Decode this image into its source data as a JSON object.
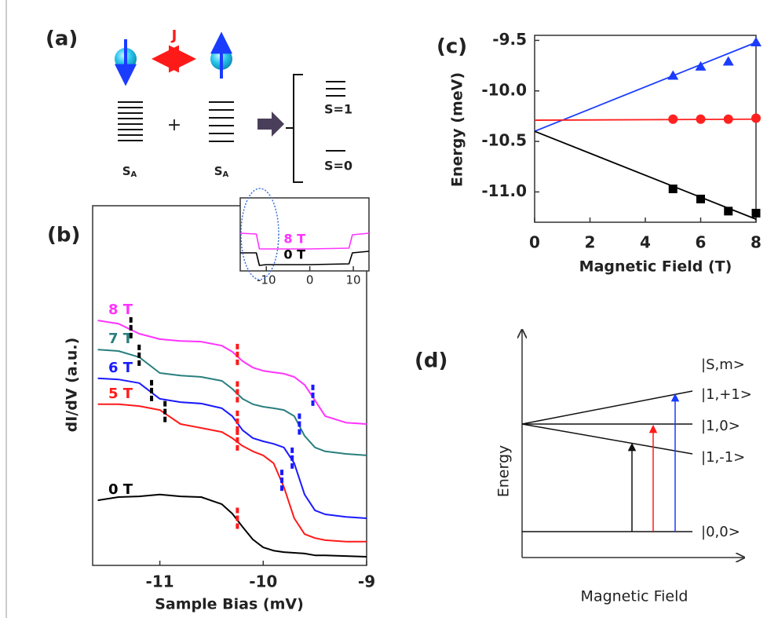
{
  "panel_a": {
    "label": "(a)",
    "coupling": "J",
    "plus": "+",
    "site_labels": [
      {
        "base": "S",
        "sub": "A"
      },
      {
        "base": "S",
        "sub": "A"
      }
    ],
    "levels": [
      "S=1",
      "S=0"
    ]
  },
  "chart_data": [
    {
      "type": "line",
      "panel_label": "(b)",
      "xlabel": "Sample Bias (mV)",
      "ylabel": "dI/dV (a.u.)",
      "x": [
        -11.6,
        -11.4,
        -11.2,
        -11.0,
        -10.8,
        -10.6,
        -10.4,
        -10.3,
        -10.2,
        -10.1,
        -10.0,
        -9.9,
        -9.8,
        -9.7,
        -9.6,
        -9.5,
        -9.4,
        -9.2,
        -9.0
      ],
      "xlim": [
        -11.65,
        -9
      ],
      "xticks": [
        -11,
        -10,
        -9
      ],
      "ylim": [
        0,
        100
      ],
      "series": [
        {
          "name": "0 T",
          "color": "#000000",
          "values": [
            18.1,
            19.0,
            19.2,
            19.7,
            19.2,
            19.0,
            17.0,
            14.4,
            10.7,
            7.2,
            5.0,
            4.1,
            3.7,
            3.5,
            3.3,
            2.8,
            2.8,
            2.6,
            2.4
          ],
          "steps": [
            {
              "x": -10.25,
              "color": "#ff1a1a"
            }
          ]
        },
        {
          "name": "5 T",
          "color": "#ff1a1a",
          "values": [
            44.8,
            44.8,
            44.3,
            43.2,
            39.3,
            38.2,
            37.1,
            35.4,
            33.2,
            31.7,
            30.6,
            28.4,
            21.8,
            13.1,
            8.7,
            7.6,
            7.0,
            6.6,
            6.6
          ],
          "steps": [
            {
              "x": -10.95,
              "color": "#000000"
            },
            {
              "x": -10.25,
              "color": "#ff1a1a"
            },
            {
              "x": -9.82,
              "color": "#1a1aff"
            }
          ]
        },
        {
          "name": "6 T",
          "color": "#1a1aff",
          "values": [
            52.0,
            51.7,
            50.7,
            46.3,
            45.4,
            45.0,
            43.7,
            41.5,
            37.6,
            35.4,
            34.5,
            33.8,
            32.8,
            28.4,
            19.7,
            15.3,
            14.2,
            13.5,
            13.1
          ],
          "steps": [
            {
              "x": -11.08,
              "color": "#000000"
            },
            {
              "x": -10.25,
              "color": "#ff1a1a"
            },
            {
              "x": -9.72,
              "color": "#1a1aff"
            }
          ]
        },
        {
          "name": "7 T",
          "color": "#2a7f7f",
          "values": [
            60.0,
            59.6,
            57.9,
            53.5,
            52.8,
            52.4,
            51.3,
            49.1,
            46.3,
            44.8,
            44.1,
            43.7,
            43.2,
            41.5,
            36.0,
            32.8,
            31.7,
            31.0,
            30.6
          ],
          "steps": [
            {
              "x": -11.2,
              "color": "#000000"
            },
            {
              "x": -10.25,
              "color": "#ff1a1a"
            },
            {
              "x": -9.65,
              "color": "#1a1aff"
            }
          ]
        },
        {
          "name": "8 T",
          "color": "#ff33ff",
          "values": [
            68.1,
            67.2,
            64.4,
            62.9,
            62.4,
            62.2,
            61.1,
            59.4,
            56.8,
            55.0,
            54.1,
            53.7,
            53.3,
            52.4,
            50.2,
            45.9,
            41.5,
            39.7,
            39.3
          ],
          "steps": [
            {
              "x": -11.28,
              "color": "#000000"
            },
            {
              "x": -10.25,
              "color": "#ff1a1a"
            },
            {
              "x": -9.52,
              "color": "#1a1aff"
            }
          ]
        }
      ]
    },
    {
      "type": "line",
      "x": [
        -16,
        -12.3,
        -11.6,
        -10,
        0,
        9,
        9.8,
        13.6
      ],
      "xlim": [
        -16,
        13.6
      ],
      "xticks": [
        -10,
        0,
        10
      ],
      "ylim": [
        0,
        100
      ],
      "series": [
        {
          "name": "8 T",
          "color": "#ff33ff",
          "values": [
            51.6,
            50.5,
            30.1,
            30.1,
            30.1,
            31.2,
            49.5,
            51.6
          ]
        },
        {
          "name": "0 T",
          "color": "#000000",
          "values": [
            24.7,
            24.7,
            7.5,
            8.6,
            8.6,
            9.7,
            24.7,
            26.9
          ]
        }
      ]
    },
    {
      "type": "scatter",
      "panel_label": "(c)",
      "xlabel": "Magnetic Field (T)",
      "ylabel": "Energy (meV)",
      "xlim": [
        0,
        8
      ],
      "xticks": [
        0,
        2,
        4,
        6,
        8
      ],
      "ylim": [
        -11.3,
        -9.45
      ],
      "yticks": [
        {
          "value": -11,
          "label": "-11.0"
        },
        -10.5,
        {
          "value": -10,
          "label": "-10.0"
        },
        -9.5
      ],
      "series": [
        {
          "color": "#1a3cff",
          "marker": "triangle",
          "x": [
            5,
            6,
            7,
            8
          ],
          "values": [
            -9.85,
            -9.76,
            -9.71,
            -9.52
          ],
          "fit_x": [
            0,
            8
          ],
          "fit_y": [
            -10.4,
            -9.52
          ]
        },
        {
          "color": "#ff2020",
          "marker": "circle",
          "x": [
            5,
            6,
            7,
            8
          ],
          "values": [
            -10.28,
            -10.28,
            -10.28,
            -10.27
          ],
          "fit_x": [
            0,
            8
          ],
          "fit_y": [
            -10.29,
            -10.28
          ]
        },
        {
          "color": "#000000",
          "marker": "square",
          "x": [
            5,
            6,
            7,
            8
          ],
          "values": [
            -10.97,
            -11.07,
            -11.19,
            -11.21
          ],
          "fit_x": [
            0,
            8
          ],
          "fit_y": [
            -10.4,
            -11.27
          ]
        }
      ]
    }
  ],
  "panel_d": {
    "label": "(d)",
    "y_label": "Energy",
    "x_label": "Magnetic Field",
    "header": "|S,m>",
    "states": [
      "|1,+1>",
      "|1,0>",
      "|1,-1>",
      "|0,0>"
    ]
  }
}
